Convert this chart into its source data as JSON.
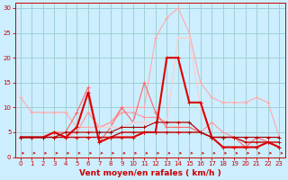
{
  "title": "",
  "xlabel": "Vent moyen/en rafales ( km/h )",
  "ylabel": "",
  "xlim": [
    -0.5,
    23.5
  ],
  "ylim": [
    0,
    31
  ],
  "yticks": [
    0,
    5,
    10,
    15,
    20,
    25,
    30
  ],
  "xticks": [
    0,
    1,
    2,
    3,
    4,
    5,
    6,
    7,
    8,
    9,
    10,
    11,
    12,
    13,
    14,
    15,
    16,
    17,
    18,
    19,
    20,
    21,
    22,
    23
  ],
  "background_color": "#cceeff",
  "grid_color": "#99cccc",
  "series": [
    {
      "x": [
        0,
        1,
        2,
        3,
        4,
        5,
        6,
        7,
        8,
        9,
        10,
        11,
        12,
        13,
        14,
        15,
        16,
        17,
        18,
        19,
        20,
        21,
        22,
        23
      ],
      "y": [
        12,
        9,
        9,
        9,
        9,
        6,
        6,
        6,
        7,
        10,
        10,
        10,
        24,
        28,
        30,
        25,
        15,
        12,
        11,
        11,
        11,
        12,
        11,
        4
      ],
      "color": "#ffaaaa",
      "lw": 0.8,
      "marker": "+"
    },
    {
      "x": [
        0,
        1,
        2,
        3,
        4,
        5,
        6,
        7,
        8,
        9,
        10,
        11,
        12,
        13,
        14,
        15,
        16,
        17,
        18,
        19,
        20,
        21,
        22,
        23
      ],
      "y": [
        4,
        4,
        4,
        4,
        4,
        5,
        9,
        6,
        7,
        9,
        9,
        8,
        8,
        7,
        7,
        7,
        5,
        7,
        5,
        4,
        4,
        4,
        4,
        4
      ],
      "color": "#ff9999",
      "lw": 0.8,
      "marker": "+"
    },
    {
      "x": [
        0,
        1,
        2,
        3,
        4,
        5,
        6,
        7,
        8,
        9,
        10,
        11,
        12,
        13,
        14,
        15,
        16,
        17,
        18,
        19,
        20,
        21,
        22,
        23
      ],
      "y": [
        4,
        4,
        4,
        5,
        5,
        9,
        14,
        3,
        6,
        10,
        7,
        15,
        9,
        6,
        6,
        6,
        5,
        4,
        4,
        4,
        2,
        4,
        3,
        2
      ],
      "color": "#ff6666",
      "lw": 0.8,
      "marker": "+"
    },
    {
      "x": [
        0,
        1,
        2,
        3,
        4,
        5,
        6,
        7,
        8,
        9,
        10,
        11,
        12,
        13,
        14,
        15,
        16,
        17,
        18,
        19,
        20,
        21,
        22,
        23
      ],
      "y": [
        4,
        4,
        4,
        4,
        4,
        5,
        5,
        6,
        6,
        6,
        7,
        7,
        7,
        7,
        24,
        24,
        10,
        4,
        4,
        4,
        4,
        4,
        4,
        4
      ],
      "color": "#ffcccc",
      "lw": 0.8,
      "marker": "+"
    },
    {
      "x": [
        0,
        1,
        2,
        3,
        4,
        5,
        6,
        7,
        8,
        9,
        10,
        11,
        12,
        13,
        14,
        15,
        16,
        17,
        18,
        19,
        20,
        21,
        22,
        23
      ],
      "y": [
        4,
        4,
        4,
        5,
        4,
        6,
        13,
        3,
        4,
        4,
        4,
        5,
        5,
        20,
        20,
        11,
        11,
        4,
        2,
        2,
        2,
        2,
        3,
        2
      ],
      "color": "#dd0000",
      "lw": 1.5,
      "marker": "+"
    },
    {
      "x": [
        0,
        1,
        2,
        3,
        4,
        5,
        6,
        7,
        8,
        9,
        10,
        11,
        12,
        13,
        14,
        15,
        16,
        17,
        18,
        19,
        20,
        21,
        22,
        23
      ],
      "y": [
        4,
        4,
        4,
        4,
        4,
        4,
        4,
        4,
        4,
        5,
        5,
        5,
        5,
        5,
        5,
        5,
        5,
        4,
        4,
        4,
        3,
        3,
        3,
        3
      ],
      "color": "#cc0000",
      "lw": 1.0,
      "marker": "+"
    },
    {
      "x": [
        0,
        1,
        2,
        3,
        4,
        5,
        6,
        7,
        8,
        9,
        10,
        11,
        12,
        13,
        14,
        15,
        16,
        17,
        18,
        19,
        20,
        21,
        22,
        23
      ],
      "y": [
        4,
        4,
        4,
        4,
        5,
        5,
        5,
        5,
        5,
        6,
        6,
        6,
        7,
        7,
        7,
        7,
        5,
        4,
        4,
        4,
        4,
        4,
        4,
        4
      ],
      "color": "#aa0000",
      "lw": 0.8,
      "marker": "+"
    }
  ],
  "xlabel_color": "#cc0000",
  "tick_color": "#cc0000",
  "axis_color": "#cc0000",
  "xlabel_fontsize": 6.5,
  "tick_fontsize": 5.0
}
